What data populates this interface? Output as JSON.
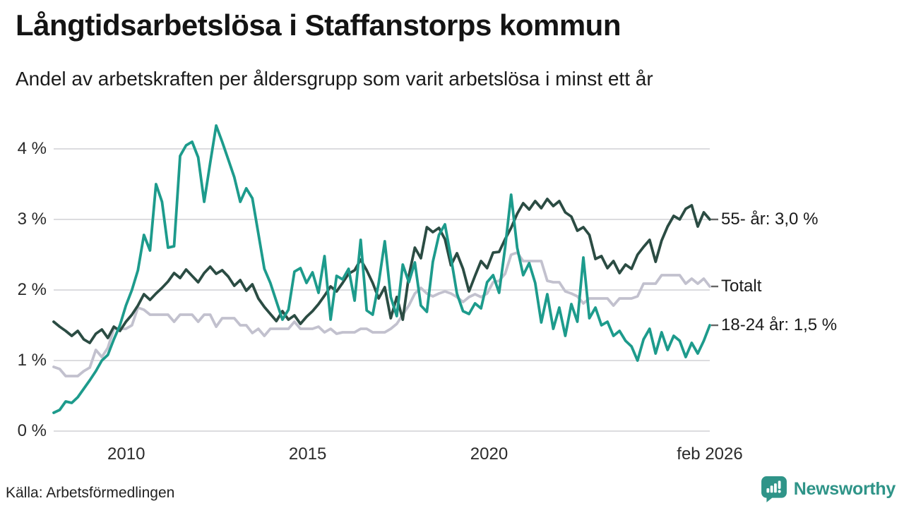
{
  "header": {
    "title": "Långtidsarbetslösa i Staffanstorps kommun",
    "subtitle": "Andel av arbetskraften per åldersgrupp som varit arbetslösa i minst ett år"
  },
  "source": {
    "label": "Källa: Arbetsförmedlingen"
  },
  "branding": {
    "wordmark": "Newsworthy",
    "logo_icon": "speech-bubble-bar-chart-icon",
    "brand_color": "#2f9488"
  },
  "chart_data": {
    "type": "line",
    "title": "Långtidsarbetslösa i Staffanstorps kommun",
    "subtitle": "Andel av arbetskraften per åldersgrupp som varit arbetslösa i minst ett år",
    "unit": "% av arbetskraften",
    "x_start": 2008.0,
    "x_end": 2026.083,
    "ylim": [
      0,
      4.5
    ],
    "grid": "horizontal",
    "gridline_color": "#dcdcdf",
    "tick_dash_color": "#666666",
    "x_ticks": [
      {
        "t": 2010,
        "label": "2010"
      },
      {
        "t": 2015,
        "label": "2015"
      },
      {
        "t": 2020,
        "label": "2020"
      },
      {
        "t": 2026.083,
        "label": "feb 2026"
      }
    ],
    "y_ticks": [
      {
        "v": 0,
        "label": "0 %"
      },
      {
        "v": 1,
        "label": "1 %"
      },
      {
        "v": 2,
        "label": "2 %"
      },
      {
        "v": 3,
        "label": "3 %"
      },
      {
        "v": 4,
        "label": "4 %"
      }
    ],
    "series": [
      {
        "key": "totalt",
        "name": "Totalt",
        "end_label": "Totalt",
        "color": "#c2c1ce",
        "last_value": 2.05,
        "values": [
          0.91,
          0.88,
          0.78,
          0.78,
          0.78,
          0.85,
          0.9,
          1.15,
          1.05,
          1.18,
          1.45,
          1.45,
          1.45,
          1.5,
          1.75,
          1.72,
          1.65,
          1.65,
          1.65,
          1.65,
          1.55,
          1.65,
          1.65,
          1.65,
          1.55,
          1.65,
          1.65,
          1.48,
          1.6,
          1.6,
          1.6,
          1.5,
          1.5,
          1.39,
          1.45,
          1.35,
          1.45,
          1.45,
          1.45,
          1.45,
          1.55,
          1.45,
          1.45,
          1.45,
          1.48,
          1.4,
          1.45,
          1.38,
          1.4,
          1.4,
          1.4,
          1.45,
          1.45,
          1.4,
          1.4,
          1.4,
          1.45,
          1.52,
          1.65,
          1.78,
          1.95,
          2.03,
          1.95,
          1.91,
          1.95,
          1.98,
          1.95,
          1.9,
          1.83,
          1.9,
          1.94,
          1.9,
          1.95,
          2.11,
          2.13,
          2.23,
          2.5,
          2.53,
          2.41,
          2.41,
          2.41,
          2.41,
          2.13,
          2.11,
          2.11,
          1.98,
          1.95,
          1.91,
          1.81,
          1.88,
          1.88,
          1.88,
          1.88,
          1.78,
          1.88,
          1.88,
          1.88,
          1.91,
          2.09,
          2.09,
          2.09,
          2.21,
          2.21,
          2.21,
          2.21,
          2.09,
          2.16,
          2.09,
          2.16,
          2.05
        ]
      },
      {
        "key": "55-ar",
        "name": "55- år",
        "end_label": "55- år: 3,0 %",
        "color": "#2b4c43",
        "last_value": 3.0,
        "values": [
          1.55,
          1.48,
          1.42,
          1.35,
          1.42,
          1.3,
          1.25,
          1.38,
          1.44,
          1.32,
          1.48,
          1.42,
          1.55,
          1.65,
          1.78,
          1.94,
          1.86,
          1.95,
          2.03,
          2.12,
          2.24,
          2.17,
          2.29,
          2.2,
          2.11,
          2.24,
          2.33,
          2.23,
          2.28,
          2.19,
          2.06,
          2.14,
          1.99,
          2.08,
          1.88,
          1.76,
          1.66,
          1.56,
          1.7,
          1.58,
          1.64,
          1.52,
          1.62,
          1.7,
          1.8,
          1.92,
          2.05,
          1.98,
          2.1,
          2.23,
          2.28,
          2.43,
          2.28,
          2.1,
          1.88,
          2.04,
          1.6,
          1.9,
          1.58,
          2.2,
          2.6,
          2.45,
          2.89,
          2.82,
          2.88,
          2.72,
          2.35,
          2.52,
          2.3,
          1.98,
          2.2,
          2.41,
          2.31,
          2.53,
          2.54,
          2.72,
          2.88,
          3.08,
          3.23,
          3.14,
          3.26,
          3.16,
          3.29,
          3.19,
          3.26,
          3.1,
          3.04,
          2.84,
          2.89,
          2.78,
          2.44,
          2.48,
          2.31,
          2.41,
          2.24,
          2.36,
          2.3,
          2.5,
          2.61,
          2.71,
          2.4,
          2.7,
          2.9,
          3.05,
          3.0,
          3.15,
          3.2,
          2.9,
          3.1,
          3.0
        ]
      },
      {
        "key": "18-24-ar",
        "name": "18-24 år",
        "end_label": "18-24 år: 1,5 %",
        "color": "#1d9b8c",
        "last_value": 1.5,
        "values": [
          0.26,
          0.3,
          0.42,
          0.4,
          0.48,
          0.6,
          0.72,
          0.85,
          1.0,
          1.08,
          1.3,
          1.5,
          1.78,
          2.0,
          2.28,
          2.78,
          2.56,
          3.5,
          3.25,
          2.6,
          2.62,
          3.9,
          4.05,
          4.1,
          3.88,
          3.25,
          3.8,
          4.33,
          4.1,
          3.85,
          3.6,
          3.25,
          3.44,
          3.3,
          2.8,
          2.3,
          2.1,
          1.84,
          1.58,
          1.72,
          2.26,
          2.31,
          2.1,
          2.25,
          1.96,
          2.48,
          1.58,
          2.2,
          2.15,
          2.3,
          1.85,
          2.71,
          1.71,
          1.65,
          2.1,
          2.69,
          1.9,
          1.63,
          2.36,
          2.11,
          2.39,
          1.78,
          1.69,
          2.4,
          2.78,
          2.93,
          2.46,
          1.95,
          1.7,
          1.66,
          1.81,
          1.74,
          2.11,
          2.21,
          1.96,
          2.6,
          3.35,
          2.6,
          2.21,
          2.38,
          2.1,
          1.54,
          1.94,
          1.45,
          1.75,
          1.35,
          1.8,
          1.55,
          2.46,
          1.6,
          1.75,
          1.5,
          1.55,
          1.35,
          1.42,
          1.28,
          1.2,
          1.0,
          1.3,
          1.45,
          1.1,
          1.4,
          1.15,
          1.35,
          1.28,
          1.05,
          1.25,
          1.1,
          1.28,
          1.5
        ]
      }
    ]
  }
}
